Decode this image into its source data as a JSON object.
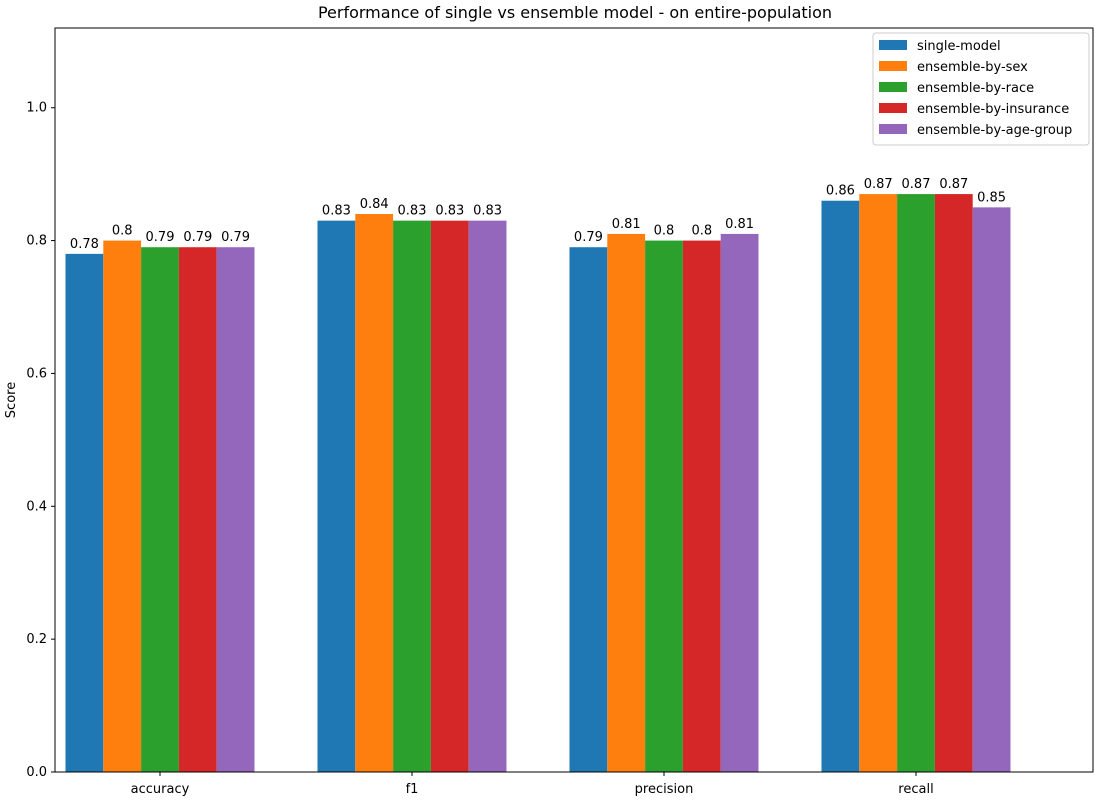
{
  "chart_data": {
    "type": "bar",
    "title": "Performance of single vs ensemble model - on entire-population",
    "xlabel": "",
    "ylabel": "Score",
    "categories": [
      "accuracy",
      "f1",
      "precision",
      "recall"
    ],
    "ylim": [
      0,
      1.12
    ],
    "yticks": [
      0.0,
      0.2,
      0.4,
      0.6,
      0.8,
      1.0
    ],
    "ytick_labels": [
      "0.0",
      "0.2",
      "0.4",
      "0.6",
      "0.8",
      "1.0"
    ],
    "grid": false,
    "legend_position": "top-right",
    "series": [
      {
        "name": "single-model",
        "color": "#1f77b4",
        "values": [
          0.78,
          0.83,
          0.79,
          0.86
        ],
        "labels": [
          "0.78",
          "0.83",
          "0.79",
          "0.86"
        ]
      },
      {
        "name": "ensemble-by-sex",
        "color": "#ff7f0e",
        "values": [
          0.8,
          0.84,
          0.81,
          0.87
        ],
        "labels": [
          "0.8",
          "0.84",
          "0.81",
          "0.87"
        ]
      },
      {
        "name": "ensemble-by-race",
        "color": "#2ca02c",
        "values": [
          0.79,
          0.83,
          0.8,
          0.87
        ],
        "labels": [
          "0.79",
          "0.83",
          "0.8",
          "0.87"
        ]
      },
      {
        "name": "ensemble-by-insurance",
        "color": "#d62728",
        "values": [
          0.79,
          0.83,
          0.8,
          0.87
        ],
        "labels": [
          "0.79",
          "0.83",
          "0.8",
          "0.87"
        ]
      },
      {
        "name": "ensemble-by-age-group",
        "color": "#9467bd",
        "values": [
          0.79,
          0.83,
          0.81,
          0.85
        ],
        "labels": [
          "0.79",
          "0.83",
          "0.81",
          "0.85"
        ]
      }
    ]
  }
}
